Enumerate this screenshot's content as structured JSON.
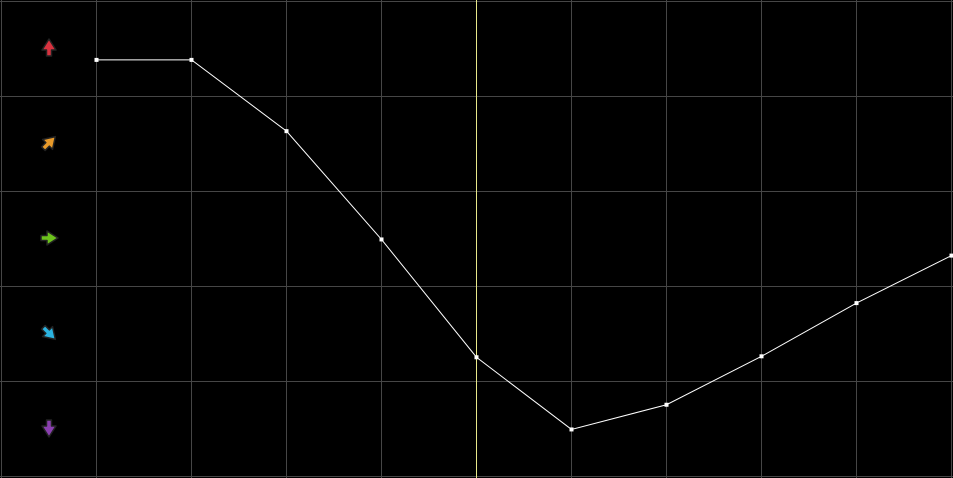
{
  "chart_data": {
    "type": "line",
    "x": [
      0,
      1,
      2,
      3,
      4,
      5,
      6,
      7,
      8,
      9
    ],
    "values": [
      4.38,
      4.38,
      3.63,
      2.49,
      1.25,
      0.49,
      0.75,
      1.26,
      1.82,
      2.32
    ],
    "ylim": [
      0,
      5
    ],
    "xlim": [
      -1,
      9
    ],
    "grid": true,
    "cursor_x": 4,
    "row_icons": [
      {
        "name": "arrow-up-icon",
        "color": "#d8323f",
        "angle": 0
      },
      {
        "name": "arrow-up-right-icon",
        "color": "#e89a2a",
        "angle": 45
      },
      {
        "name": "arrow-right-icon",
        "color": "#6cc21c",
        "angle": 90
      },
      {
        "name": "arrow-down-right-icon",
        "color": "#2bb3e0",
        "angle": 135
      },
      {
        "name": "arrow-down-icon",
        "color": "#8a3fb0",
        "angle": 180
      }
    ],
    "colors": {
      "background": "#000000",
      "grid": "#464646",
      "line": "#ffffff",
      "cursor": "#e8e88a"
    }
  }
}
